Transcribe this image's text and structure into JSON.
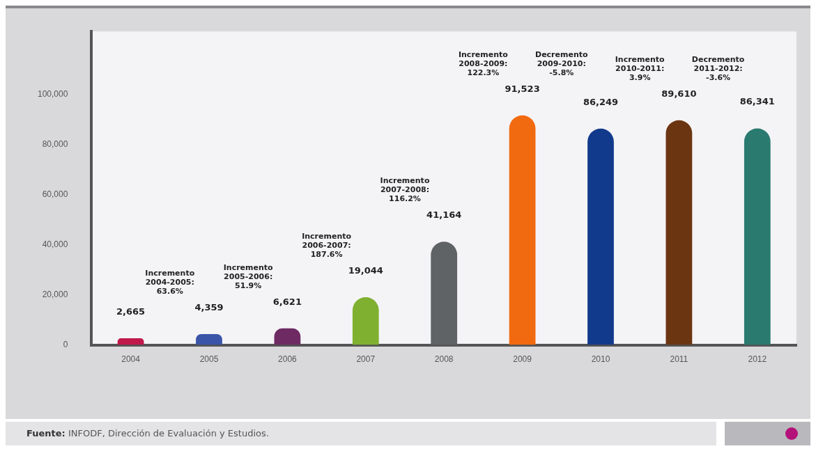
{
  "chart_data": {
    "type": "bar",
    "categories": [
      "2004",
      "2005",
      "2006",
      "2007",
      "2008",
      "2009",
      "2010",
      "2011",
      "2012"
    ],
    "values": [
      2665,
      4359,
      6621,
      19044,
      41164,
      91523,
      86249,
      89610,
      86341
    ],
    "value_labels": [
      "2,665",
      "4,359",
      "6,621",
      "19,044",
      "41,164",
      "91,523",
      "86,249",
      "89,610",
      "86,341"
    ],
    "colors": [
      "#c0184a",
      "#3a55a8",
      "#6e2a63",
      "#7fb030",
      "#5f6366",
      "#f26a10",
      "#123a8c",
      "#6b3512",
      "#2a7a70"
    ],
    "ylim": [
      0,
      125000
    ],
    "yticks": [
      {
        "value": 0,
        "label": "0"
      },
      {
        "value": 20000,
        "label": "20,000"
      },
      {
        "value": 40000,
        "label": "40,000"
      },
      {
        "value": 60000,
        "label": "60,000"
      },
      {
        "value": 80000,
        "label": "80,000"
      },
      {
        "value": 100000,
        "label": "100,000"
      }
    ],
    "grid": false,
    "annotations": [
      "Incremento 2004-2005: 63.6%",
      "Incremento 2005-2006: 51.9%",
      "Incremento 2006-2007: 187.6%",
      "Incremento 2007-2008: 116.2%",
      "Incremento 2008-2009: 122.3%",
      "Decremento 2009-2010: -5.8%",
      "Incremento 2010-2011: 3.9%",
      "Decremento 2011-2012: -3.6%",
      "Fuente: INFODF, Dirección de Evaluación y Estudios."
    ]
  }
}
